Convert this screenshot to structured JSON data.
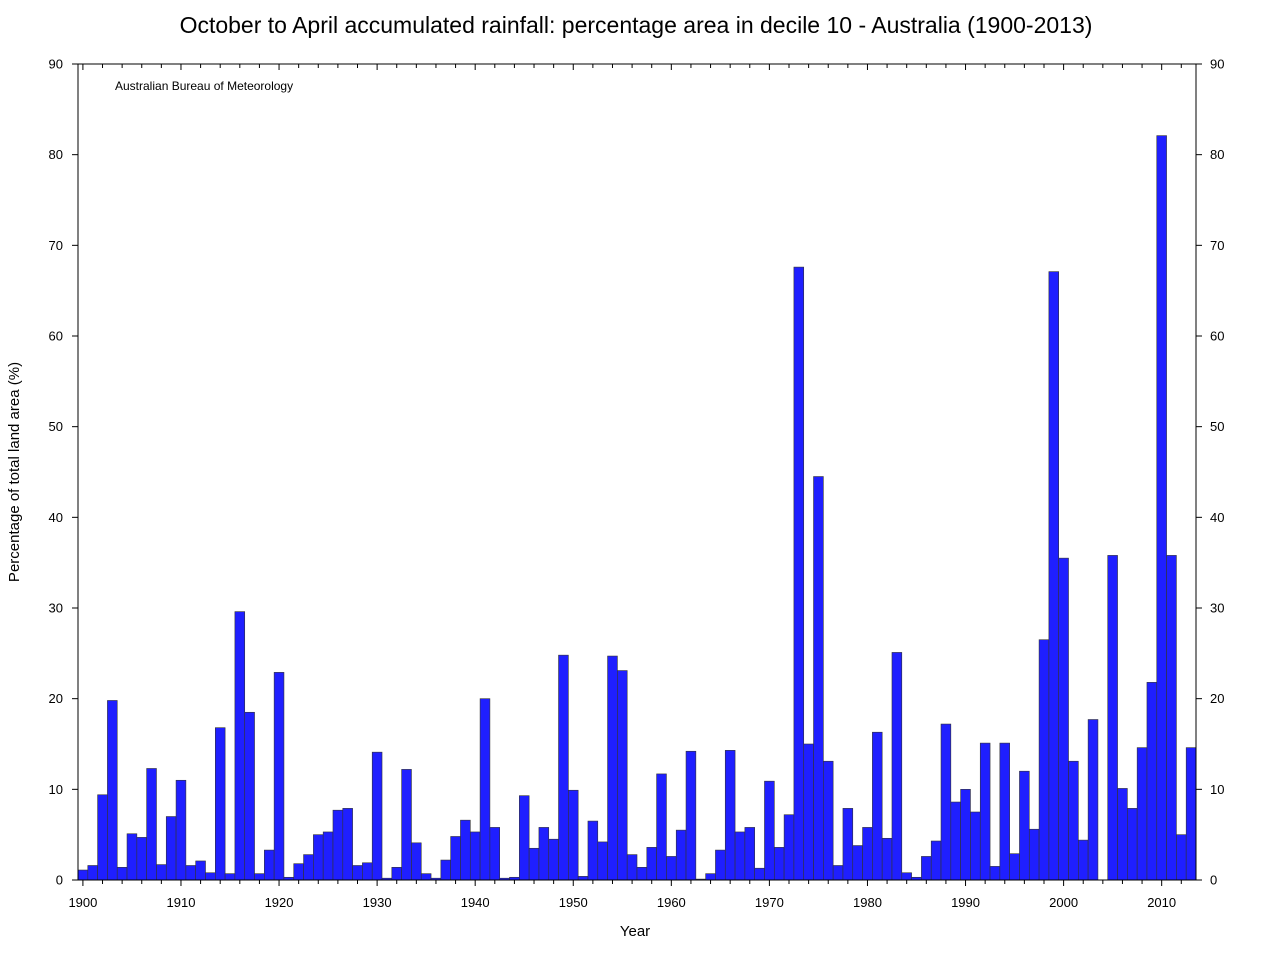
{
  "chart_data": {
    "type": "bar",
    "title": "October to April accumulated rainfall: percentage area in decile 10 - Australia (1900-2013)",
    "xlabel": "Year",
    "ylabel": "Percentage of total land area (%)",
    "annotation": "Australian Bureau of Meteorology",
    "bar_color": "#1f1fff",
    "bar_edge_color": "#333333",
    "xlim": [
      1899.5,
      2013.5
    ],
    "ylim": [
      0,
      90
    ],
    "x_ticks": [
      1900,
      1910,
      1920,
      1930,
      1940,
      1950,
      1960,
      1970,
      1980,
      1990,
      2000,
      2010
    ],
    "y_ticks": [
      0,
      10,
      20,
      30,
      40,
      50,
      60,
      70,
      80,
      90
    ],
    "grid": false,
    "x": [
      1900,
      1901,
      1902,
      1903,
      1904,
      1905,
      1906,
      1907,
      1908,
      1909,
      1910,
      1911,
      1912,
      1913,
      1914,
      1915,
      1916,
      1917,
      1918,
      1919,
      1920,
      1921,
      1922,
      1923,
      1924,
      1925,
      1926,
      1927,
      1928,
      1929,
      1930,
      1931,
      1932,
      1933,
      1934,
      1935,
      1936,
      1937,
      1938,
      1939,
      1940,
      1941,
      1942,
      1943,
      1944,
      1945,
      1946,
      1947,
      1948,
      1949,
      1950,
      1951,
      1952,
      1953,
      1954,
      1955,
      1956,
      1957,
      1958,
      1959,
      1960,
      1961,
      1962,
      1963,
      1964,
      1965,
      1966,
      1967,
      1968,
      1969,
      1970,
      1971,
      1972,
      1973,
      1974,
      1975,
      1976,
      1977,
      1978,
      1979,
      1980,
      1981,
      1982,
      1983,
      1984,
      1985,
      1986,
      1987,
      1988,
      1989,
      1990,
      1991,
      1992,
      1993,
      1994,
      1995,
      1996,
      1997,
      1998,
      1999,
      2000,
      2001,
      2002,
      2003,
      2004,
      2005,
      2006,
      2007,
      2008,
      2009,
      2010,
      2011,
      2012,
      2013
    ],
    "values": [
      1.1,
      1.6,
      9.4,
      19.8,
      1.4,
      5.1,
      4.7,
      12.3,
      1.7,
      7.0,
      11.0,
      1.6,
      2.1,
      0.8,
      16.8,
      0.7,
      29.6,
      18.5,
      0.7,
      3.3,
      22.9,
      0.3,
      1.8,
      2.8,
      5.0,
      5.3,
      7.7,
      7.9,
      1.6,
      1.9,
      14.1,
      0.2,
      1.4,
      12.2,
      4.1,
      0.7,
      0.2,
      2.2,
      4.8,
      6.6,
      5.3,
      20.0,
      5.8,
      0.2,
      0.3,
      9.3,
      3.5,
      5.8,
      4.5,
      24.8,
      9.9,
      0.4,
      6.5,
      4.2,
      24.7,
      23.1,
      2.8,
      1.4,
      3.6,
      11.7,
      2.6,
      5.5,
      14.2,
      0.1,
      0.7,
      3.3,
      14.3,
      5.3,
      5.8,
      1.3,
      10.9,
      3.6,
      7.2,
      67.6,
      15.0,
      44.5,
      13.1,
      1.6,
      7.9,
      3.8,
      5.8,
      16.3,
      4.6,
      25.1,
      0.8,
      0.3,
      2.6,
      4.3,
      17.2,
      8.6,
      10.0,
      7.5,
      15.1,
      1.5,
      15.1,
      2.9,
      12.0,
      5.6,
      26.5,
      67.1,
      35.5,
      13.1,
      4.4,
      17.7,
      0,
      35.8,
      10.1,
      7.9,
      14.6,
      21.8,
      82.1,
      35.8,
      5.0,
      14.6
    ]
  }
}
